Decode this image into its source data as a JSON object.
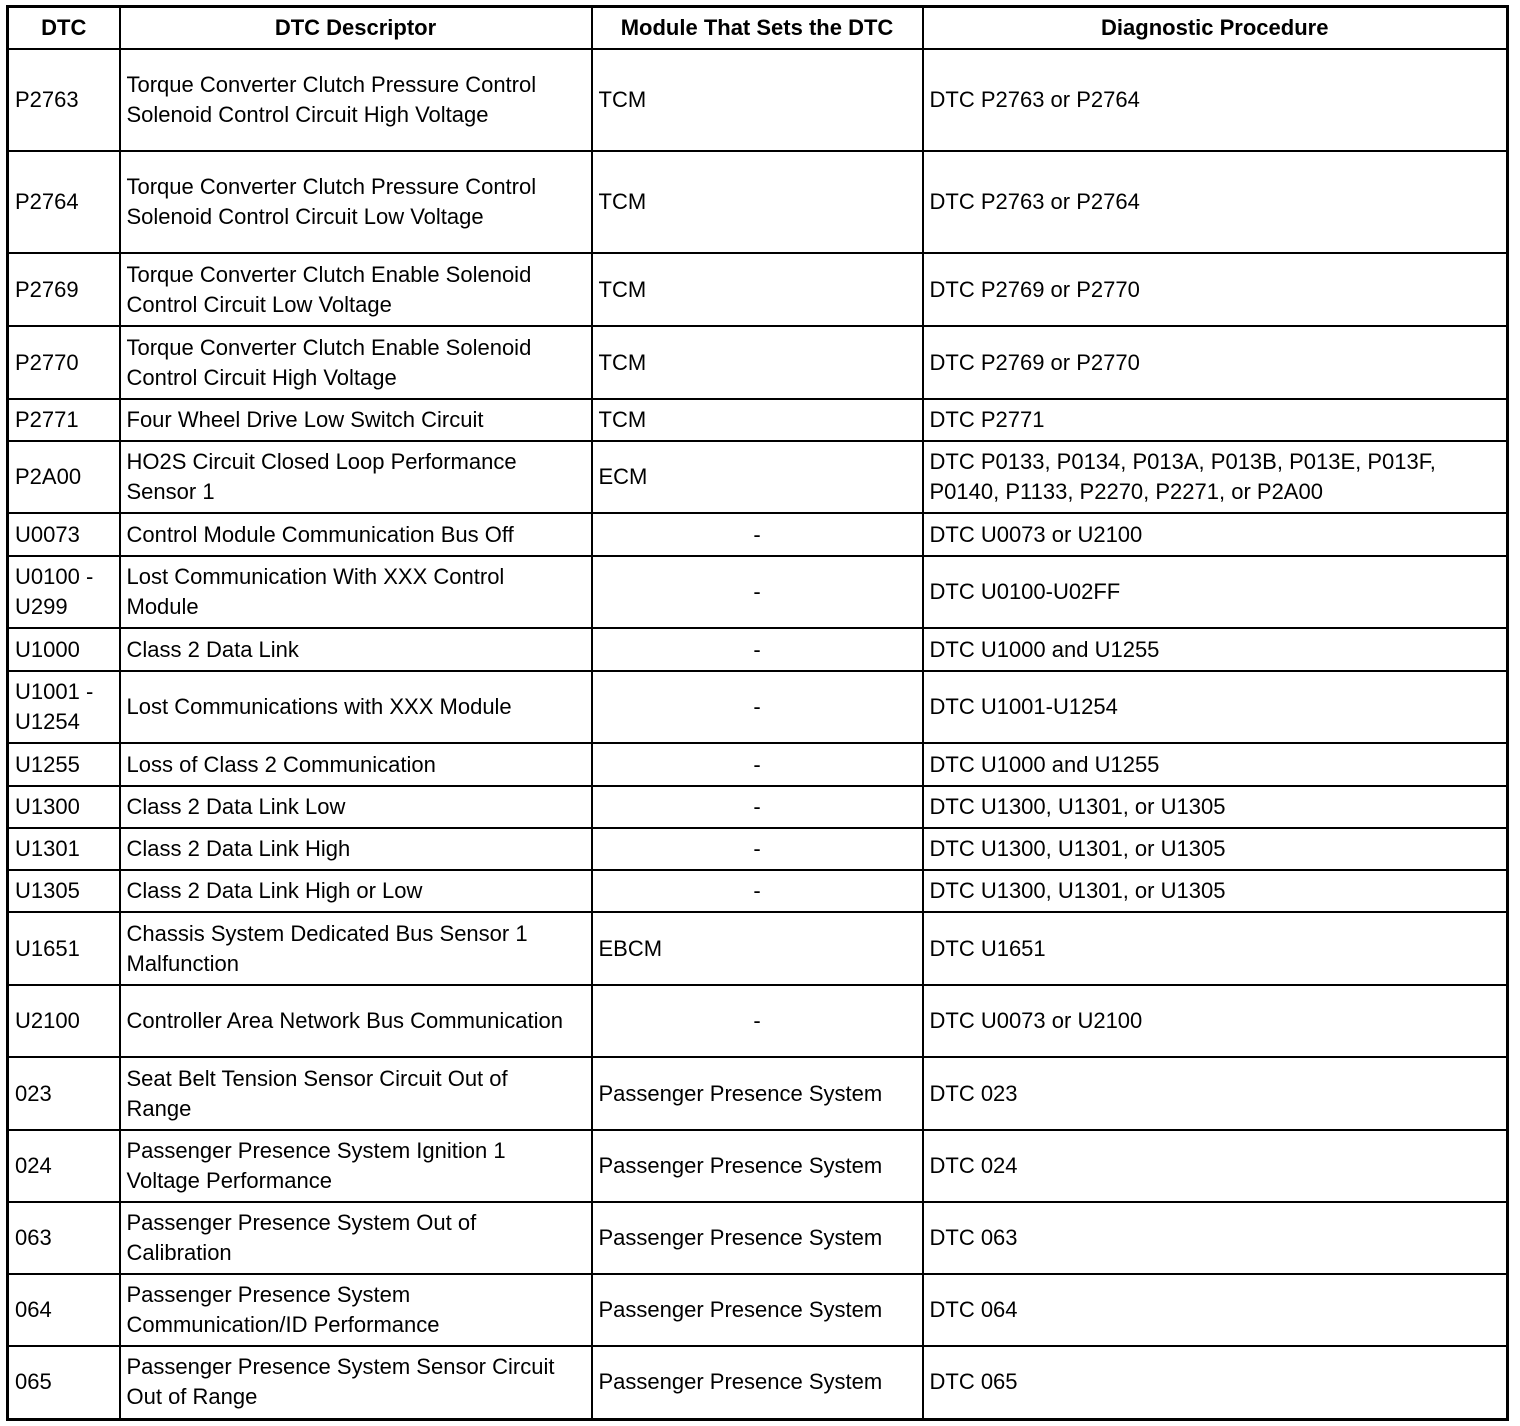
{
  "table": {
    "headers": [
      "DTC",
      "DTC Descriptor",
      "Module That Sets the DTC",
      "Diagnostic Procedure"
    ],
    "rows": [
      {
        "dtc": "P2763",
        "descriptor": "Torque Converter Clutch Pressure Control Solenoid Control Circuit High Voltage",
        "module": "TCM",
        "procedure": "DTC P2763 or P2764"
      },
      {
        "dtc": "P2764",
        "descriptor": "Torque Converter Clutch Pressure Control Solenoid Control Circuit Low Voltage",
        "module": "TCM",
        "procedure": "DTC P2763 or P2764"
      },
      {
        "dtc": "P2769",
        "descriptor": "Torque Converter Clutch Enable Solenoid Control Circuit Low Voltage",
        "module": "TCM",
        "procedure": "DTC P2769 or P2770"
      },
      {
        "dtc": "P2770",
        "descriptor": "Torque Converter Clutch Enable Solenoid Control Circuit High Voltage",
        "module": "TCM",
        "procedure": "DTC P2769 or P2770"
      },
      {
        "dtc": "P2771",
        "descriptor": "Four Wheel Drive Low Switch Circuit",
        "module": "TCM",
        "procedure": "DTC P2771"
      },
      {
        "dtc": "P2A00",
        "descriptor": "HO2S Circuit Closed Loop Performance Sensor 1",
        "module": "ECM",
        "procedure": "DTC P0133, P0134, P013A, P013B, P013E, P013F, P0140, P1133, P2270, P2271, or P2A00"
      },
      {
        "dtc": "U0073",
        "descriptor": "Control Module Communication Bus Off",
        "module": "-",
        "procedure": "DTC U0073 or U2100"
      },
      {
        "dtc": "U0100 - U299",
        "descriptor": "Lost Communication With XXX Control Module",
        "module": "-",
        "procedure": "DTC U0100-U02FF"
      },
      {
        "dtc": "U1000",
        "descriptor": "Class 2 Data Link",
        "module": "-",
        "procedure": "DTC U1000 and U1255"
      },
      {
        "dtc": "U1001 - U1254",
        "descriptor": "Lost Communications with XXX Module",
        "module": "-",
        "procedure": "DTC U1001-U1254"
      },
      {
        "dtc": "U1255",
        "descriptor": "Loss of Class 2 Communication",
        "module": "-",
        "procedure": "DTC U1000 and U1255"
      },
      {
        "dtc": "U1300",
        "descriptor": "Class 2 Data Link Low",
        "module": "-",
        "procedure": "DTC U1300, U1301, or U1305"
      },
      {
        "dtc": "U1301",
        "descriptor": "Class 2 Data Link High",
        "module": "-",
        "procedure": "DTC U1300, U1301, or U1305"
      },
      {
        "dtc": "U1305",
        "descriptor": "Class 2 Data Link High or Low",
        "module": "-",
        "procedure": "DTC U1300, U1301, or U1305"
      },
      {
        "dtc": "U1651",
        "descriptor": "Chassis System Dedicated Bus Sensor 1 Malfunction",
        "module": "EBCM",
        "procedure": "DTC U1651"
      },
      {
        "dtc": "U2100",
        "descriptor": "Controller Area Network Bus Communication",
        "module": "-",
        "procedure": "DTC U0073 or U2100"
      },
      {
        "dtc": "023",
        "descriptor": "Seat Belt Tension Sensor Circuit Out of Range",
        "module": "Passenger Presence System",
        "procedure": "DTC 023"
      },
      {
        "dtc": "024",
        "descriptor": "Passenger Presence System Ignition 1 Voltage Performance",
        "module": "Passenger Presence System",
        "procedure": "DTC 024"
      },
      {
        "dtc": "063",
        "descriptor": "Passenger Presence System Out of Calibration",
        "module": "Passenger Presence System",
        "procedure": "DTC 063"
      },
      {
        "dtc": "064",
        "descriptor": "Passenger Presence System Communication/ID Performance",
        "module": "Passenger Presence System",
        "procedure": "DTC 064"
      },
      {
        "dtc": "065",
        "descriptor": "Passenger Presence System Sensor Circuit Out of Range",
        "module": "Passenger Presence System",
        "procedure": "DTC 065"
      }
    ]
  }
}
